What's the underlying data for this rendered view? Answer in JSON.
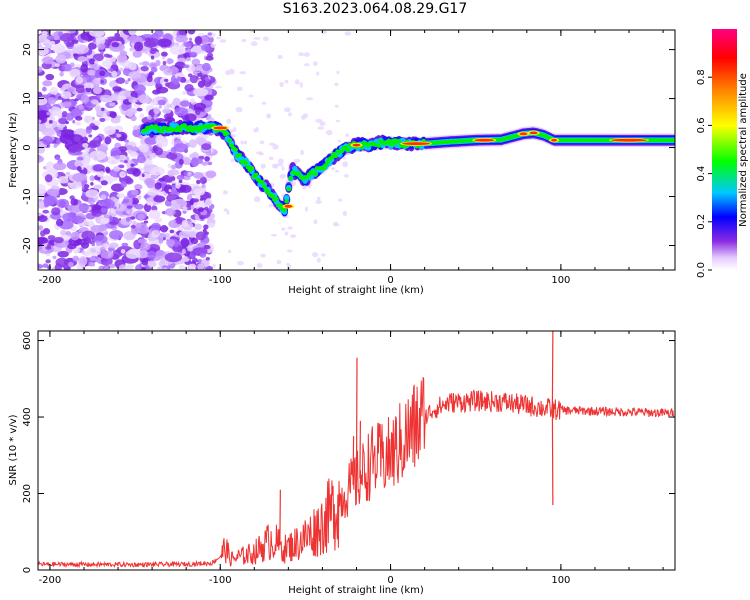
{
  "figure": {
    "title": "S163.2023.064.08.29.G17"
  },
  "chart_data": [
    {
      "type": "heatmap",
      "xlabel": "Height of straight line (km)",
      "ylabel": "Frequency (Hz)",
      "xlim": [
        -207,
        167
      ],
      "ylim": [
        -25,
        24
      ],
      "xticks": [
        -200,
        -100,
        0,
        100
      ],
      "yticks": [
        -20,
        -10,
        0,
        10,
        20
      ],
      "colorbar": {
        "label": "Normalized spectral amplitude",
        "range": [
          0,
          1
        ],
        "ticks": [
          "0.0",
          "0.2",
          "0.4",
          "0.6",
          "0.8"
        ],
        "tick_values": [
          0.0,
          0.2,
          0.4,
          0.6,
          0.8
        ]
      },
      "ridge": [
        [
          -145,
          3.5
        ],
        [
          -130,
          4.0
        ],
        [
          -115,
          4.0
        ],
        [
          -102,
          4.0
        ],
        [
          -96,
          2.5
        ],
        [
          -90,
          -1.5
        ],
        [
          -84,
          -3.5
        ],
        [
          -78,
          -6.5
        ],
        [
          -72,
          -8.5
        ],
        [
          -67,
          -11.0
        ],
        [
          -62,
          -13.0
        ],
        [
          -58,
          -4.5
        ],
        [
          -54,
          -5.5
        ],
        [
          -50,
          -6.5
        ],
        [
          -45,
          -5.0
        ],
        [
          -40,
          -4.0
        ],
        [
          -34,
          -2.0
        ],
        [
          -28,
          -0.5
        ],
        [
          -20,
          0.5
        ],
        [
          -12,
          0.5
        ],
        [
          -5,
          1.0
        ],
        [
          5,
          0.8
        ],
        [
          20,
          0.8
        ],
        [
          35,
          1.2
        ],
        [
          50,
          1.5
        ],
        [
          65,
          1.6
        ],
        [
          78,
          2.8
        ],
        [
          84,
          3.0
        ],
        [
          90,
          2.5
        ],
        [
          96,
          1.5
        ],
        [
          110,
          1.5
        ],
        [
          130,
          1.5
        ],
        [
          150,
          1.5
        ],
        [
          167,
          1.5
        ]
      ]
    },
    {
      "type": "line",
      "xlabel": "Height of straight line (km)",
      "ylabel": "SNR (10 * v/v)",
      "xlim": [
        -207,
        167
      ],
      "ylim": [
        0,
        625
      ],
      "xticks": [
        -200,
        -100,
        0,
        100
      ],
      "yticks": [
        0,
        200,
        400,
        600
      ],
      "color": "#ee3333",
      "envelope": [
        [
          -207,
          15
        ],
        [
          -150,
          14
        ],
        [
          -120,
          15
        ],
        [
          -105,
          18
        ],
        [
          -100,
          35
        ],
        [
          -97,
          60
        ],
        [
          -94,
          28
        ],
        [
          -80,
          45
        ],
        [
          -70,
          80
        ],
        [
          -62,
          55
        ],
        [
          -55,
          70
        ],
        [
          -48,
          90
        ],
        [
          -40,
          120
        ],
        [
          -33,
          160
        ],
        [
          -25,
          210
        ],
        [
          -18,
          240
        ],
        [
          -12,
          280
        ],
        [
          -5,
          290
        ],
        [
          0,
          300
        ],
        [
          6,
          330
        ],
        [
          12,
          360
        ],
        [
          18,
          390
        ],
        [
          25,
          420
        ],
        [
          35,
          438
        ],
        [
          50,
          442
        ],
        [
          65,
          440
        ],
        [
          80,
          430
        ],
        [
          92,
          422
        ],
        [
          100,
          418
        ],
        [
          130,
          414
        ],
        [
          150,
          412
        ],
        [
          167,
          410
        ]
      ],
      "spikes": [
        [
          -65,
          210
        ],
        [
          -22,
          350
        ],
        [
          -20,
          555
        ],
        [
          -18,
          390
        ],
        [
          3,
          390
        ],
        [
          95,
          625
        ],
        [
          95,
          170
        ]
      ]
    }
  ]
}
